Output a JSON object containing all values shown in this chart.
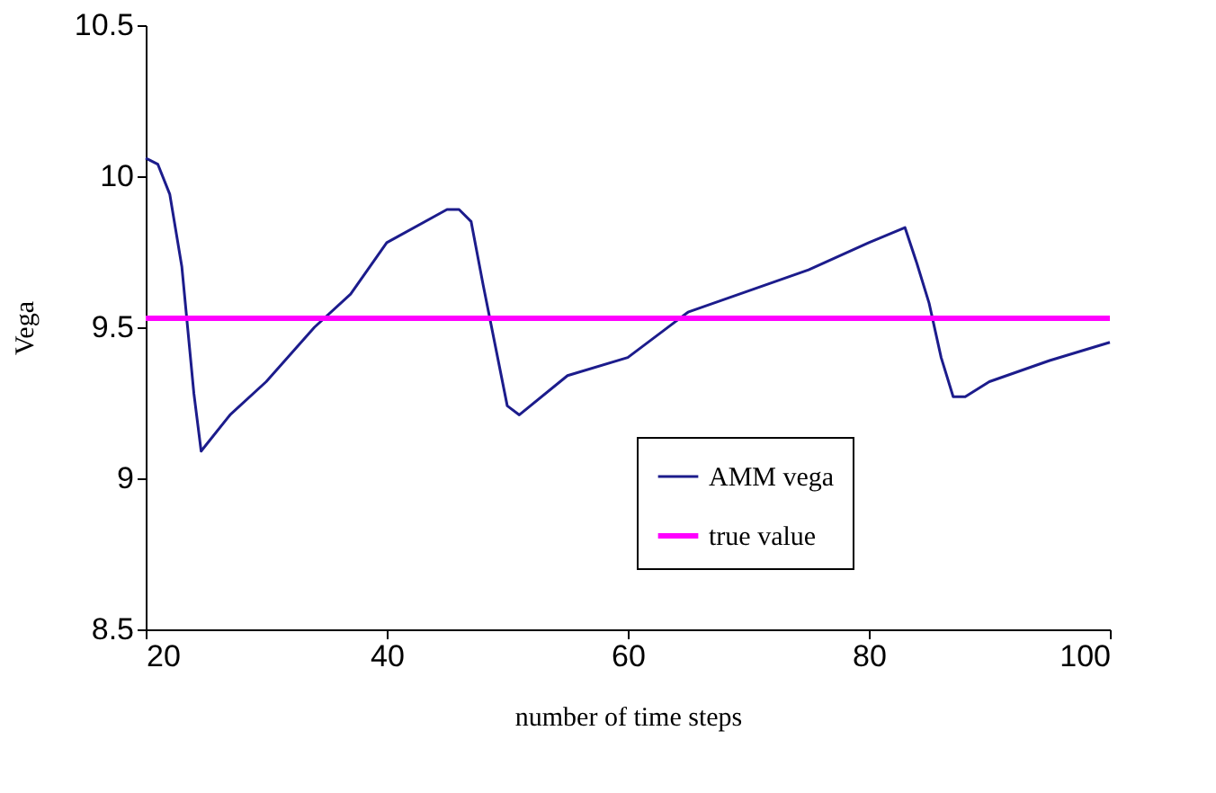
{
  "chart_data": {
    "type": "line",
    "xlabel": "number of time steps",
    "ylabel": "Vega",
    "xlim": [
      20,
      100
    ],
    "xticks": [
      20,
      40,
      60,
      80,
      100
    ],
    "ylim": [
      8.5,
      10.5
    ],
    "yticks": [
      8.5,
      9,
      9.5,
      10,
      10.5
    ],
    "grid": false,
    "legend": "bottom right",
    "marker": "none",
    "line_style": "solid",
    "series": [
      {
        "name": "AMM vega",
        "color": "#1c1c8c",
        "x": [
          20,
          21,
          22,
          23,
          24,
          24.6,
          25,
          27,
          30,
          34,
          37,
          40,
          45,
          46,
          47,
          48,
          49,
          50,
          51,
          55,
          60,
          63,
          65,
          70,
          75,
          80,
          83,
          84,
          85,
          86,
          87,
          88,
          90,
          95,
          100
        ],
        "values": [
          10.06,
          10.04,
          9.94,
          9.7,
          9.28,
          9.09,
          9.11,
          9.21,
          9.32,
          9.5,
          9.61,
          9.78,
          9.89,
          9.89,
          9.85,
          9.64,
          9.44,
          9.24,
          9.21,
          9.34,
          9.4,
          9.49,
          9.55,
          9.62,
          9.69,
          9.78,
          9.83,
          9.71,
          9.58,
          9.4,
          9.27,
          9.27,
          9.32,
          9.39,
          9.45
        ]
      },
      {
        "name": "true value",
        "color": "#ff00ff",
        "x": [
          20,
          100
        ],
        "values": [
          9.53,
          9.53
        ]
      }
    ]
  }
}
